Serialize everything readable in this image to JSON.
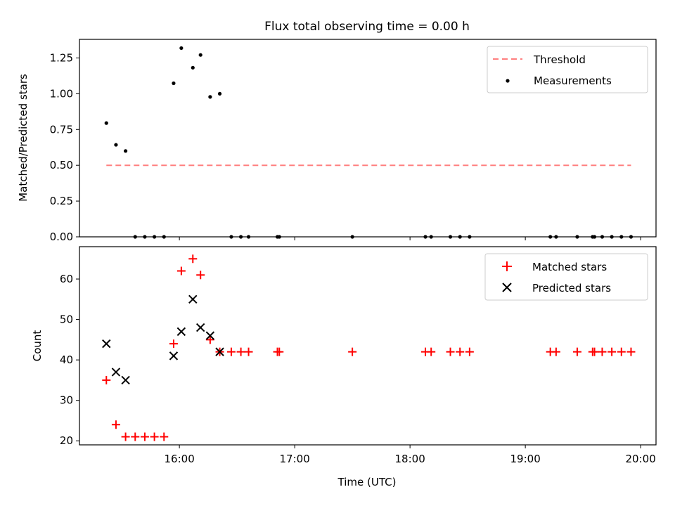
{
  "chart_data": [
    {
      "type": "scatter",
      "title": "Flux total observing time = 0.00 h",
      "xlabel": "",
      "ylabel": "Matched/Predicted stars",
      "xlim": [
        "15:08",
        "20:08"
      ],
      "ylim": [
        0,
        1.38
      ],
      "yticks": [
        0.0,
        0.25,
        0.5,
        0.75,
        1.0,
        1.25
      ],
      "ytick_labels": [
        "0.00",
        "0.25",
        "0.50",
        "0.75",
        "1.00",
        "1.25"
      ],
      "legend_position": "upper right",
      "threshold": {
        "name": "Threshold",
        "value": 0.5,
        "x_start": "15:22",
        "x_end": "19:55",
        "color": "#ff7f7f",
        "style": "dashed"
      },
      "series": [
        {
          "name": "Measurements",
          "marker": "dot",
          "color": "#000000",
          "points": [
            [
              "15:22",
              0.795
            ],
            [
              "15:27",
              0.643
            ],
            [
              "15:32",
              0.6
            ],
            [
              "15:37",
              0.0
            ],
            [
              "15:42",
              0.0
            ],
            [
              "15:47",
              0.0
            ],
            [
              "15:52",
              0.0
            ],
            [
              "15:57",
              1.073
            ],
            [
              "16:01",
              1.319
            ],
            [
              "16:07",
              1.182
            ],
            [
              "16:11",
              1.271
            ],
            [
              "16:16",
              0.978
            ],
            [
              "16:21",
              1.0
            ],
            [
              "16:27",
              0.0
            ],
            [
              "16:32",
              0.0
            ],
            [
              "16:36",
              0.0
            ],
            [
              "16:51",
              0.0
            ],
            [
              "16:52",
              0.0
            ],
            [
              "17:30",
              0.0
            ],
            [
              "18:08",
              0.0
            ],
            [
              "18:11",
              0.0
            ],
            [
              "18:21",
              0.0
            ],
            [
              "18:26",
              0.0
            ],
            [
              "18:31",
              0.0
            ],
            [
              "19:13",
              0.0
            ],
            [
              "19:16",
              0.0
            ],
            [
              "19:27",
              0.0
            ],
            [
              "19:35",
              0.0
            ],
            [
              "19:36",
              0.0
            ],
            [
              "19:40",
              0.0
            ],
            [
              "19:45",
              0.0
            ],
            [
              "19:50",
              0.0
            ],
            [
              "19:55",
              0.0
            ]
          ]
        }
      ]
    },
    {
      "type": "scatter",
      "title": "",
      "xlabel": "Time (UTC)",
      "ylabel": "Count",
      "xlim": [
        "15:08",
        "20:08"
      ],
      "ylim": [
        19,
        68
      ],
      "yticks": [
        20,
        30,
        40,
        50,
        60
      ],
      "ytick_labels": [
        "20",
        "30",
        "40",
        "50",
        "60"
      ],
      "xticks": [
        "16:00",
        "17:00",
        "18:00",
        "19:00",
        "20:00"
      ],
      "xtick_labels": [
        "16:00",
        "17:00",
        "18:00",
        "19:00",
        "20:00"
      ],
      "legend_position": "upper right",
      "series": [
        {
          "name": "Matched stars",
          "marker": "plus",
          "color": "#ff0000",
          "points": [
            [
              "15:22",
              35
            ],
            [
              "15:27",
              24
            ],
            [
              "15:32",
              21
            ],
            [
              "15:37",
              21
            ],
            [
              "15:42",
              21
            ],
            [
              "15:47",
              21
            ],
            [
              "15:52",
              21
            ],
            [
              "15:57",
              44
            ],
            [
              "16:01",
              62
            ],
            [
              "16:07",
              65
            ],
            [
              "16:11",
              61
            ],
            [
              "16:16",
              45
            ],
            [
              "16:21",
              42
            ],
            [
              "16:27",
              42
            ],
            [
              "16:32",
              42
            ],
            [
              "16:36",
              42
            ],
            [
              "16:51",
              42
            ],
            [
              "16:52",
              42
            ],
            [
              "17:30",
              42
            ],
            [
              "18:08",
              42
            ],
            [
              "18:11",
              42
            ],
            [
              "18:21",
              42
            ],
            [
              "18:26",
              42
            ],
            [
              "18:31",
              42
            ],
            [
              "19:13",
              42
            ],
            [
              "19:16",
              42
            ],
            [
              "19:27",
              42
            ],
            [
              "19:35",
              42
            ],
            [
              "19:36",
              42
            ],
            [
              "19:40",
              42
            ],
            [
              "19:45",
              42
            ],
            [
              "19:50",
              42
            ],
            [
              "19:55",
              42
            ]
          ]
        },
        {
          "name": "Predicted stars",
          "marker": "x",
          "color": "#000000",
          "points": [
            [
              "15:22",
              44
            ],
            [
              "15:27",
              37
            ],
            [
              "15:32",
              35
            ],
            [
              "15:57",
              41
            ],
            [
              "16:01",
              47
            ],
            [
              "16:07",
              55
            ],
            [
              "16:11",
              48
            ],
            [
              "16:16",
              46
            ],
            [
              "16:21",
              42
            ]
          ]
        }
      ]
    }
  ]
}
